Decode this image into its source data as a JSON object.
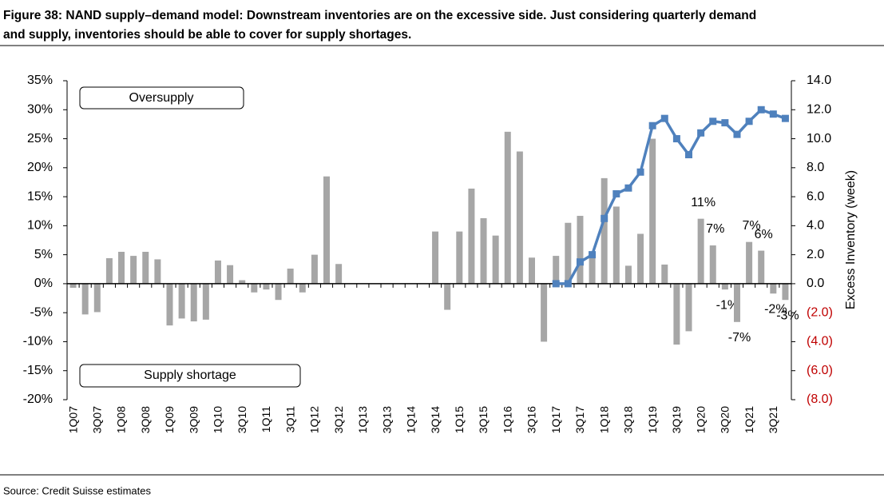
{
  "chart_data": {
    "type": "bar",
    "title": "Figure 38: NAND supply–demand model: Downstream inventories are on the excessive side. Just considering quarterly demand and supply, inventories should be able to cover for supply shortages.",
    "source": "Source: Credit Suisse estimates",
    "annotations": [
      "Oversupply",
      "Supply shortage"
    ],
    "y2label": "Excess Inventory (week)",
    "categories": [
      "1Q07",
      null,
      "3Q07",
      null,
      "1Q08",
      null,
      "3Q08",
      null,
      "1Q09",
      null,
      "3Q09",
      null,
      "1Q10",
      null,
      "3Q10",
      null,
      "1Q11",
      null,
      "3Q11",
      null,
      "1Q12",
      null,
      "3Q12",
      null,
      "1Q13",
      null,
      "3Q13",
      null,
      "1Q14",
      null,
      "3Q14",
      null,
      "1Q15",
      null,
      "3Q15",
      null,
      "1Q16",
      null,
      "3Q16",
      null,
      "1Q17",
      null,
      "3Q17",
      null,
      "1Q18",
      null,
      "3Q18",
      null,
      "1Q19",
      null,
      "3Q19",
      null,
      "1Q20",
      null,
      "3Q20",
      null,
      "1Q21",
      null,
      "3Q21",
      null
    ],
    "series": [
      {
        "type": "bar",
        "color": "#a6a6a6",
        "values": [
          -0.7,
          -5.3,
          -4.9,
          4.4,
          5.5,
          4.8,
          5.5,
          4.2,
          -7.2,
          -6,
          -6.5,
          -6.2,
          4,
          3.2,
          0.6,
          -1.5,
          -1,
          -2.8,
          2.6,
          -1.5,
          5,
          18.5,
          3.4,
          0,
          0,
          0,
          0,
          0,
          0,
          0,
          9,
          -4.5,
          9,
          16.4,
          11.3,
          8.3,
          26.2,
          22.8,
          4.5,
          -10,
          4.8,
          10.5,
          11.7,
          4.9,
          18.2,
          13.3,
          3.1,
          8.6,
          25,
          3.3,
          -10.5,
          -8.2,
          11.2,
          6.6,
          -1,
          -6.6,
          7.2,
          5.7,
          -1.7,
          -2.8
        ],
        "value_labels": [
          null,
          null,
          null,
          null,
          null,
          null,
          null,
          null,
          null,
          null,
          null,
          null,
          null,
          null,
          null,
          null,
          null,
          null,
          null,
          null,
          null,
          null,
          null,
          null,
          null,
          null,
          null,
          null,
          null,
          null,
          null,
          null,
          null,
          null,
          null,
          null,
          null,
          null,
          null,
          null,
          null,
          null,
          null,
          null,
          null,
          null,
          null,
          null,
          null,
          null,
          null,
          null,
          "11%",
          "7%",
          "-1%",
          "-7%",
          "7%",
          "6%",
          "-2%",
          "-3%"
        ]
      },
      {
        "type": "line",
        "axis": "y2",
        "color": "#4f81bd",
        "values": [
          null,
          null,
          null,
          null,
          null,
          null,
          null,
          null,
          null,
          null,
          null,
          null,
          null,
          null,
          null,
          null,
          null,
          null,
          null,
          null,
          null,
          null,
          null,
          null,
          null,
          null,
          null,
          null,
          null,
          null,
          null,
          null,
          null,
          null,
          null,
          null,
          null,
          null,
          null,
          null,
          0,
          0,
          1.5,
          2.0,
          4.5,
          6.2,
          6.6,
          7.7,
          10.9,
          11.4,
          10.0,
          8.9,
          10.4,
          11.2,
          11.1,
          10.3,
          11.2,
          12.0,
          11.7,
          11.4
        ]
      }
    ],
    "ylim": [
      -20,
      35
    ],
    "yticks": [
      {
        "value": -20,
        "label": "-20%"
      },
      {
        "value": -15,
        "label": "-15%"
      },
      {
        "value": -10,
        "label": "-10%"
      },
      {
        "value": -5,
        "label": "-5%"
      },
      {
        "value": 0,
        "label": "0%"
      },
      {
        "value": 5,
        "label": "5%"
      },
      {
        "value": 10,
        "label": "10%"
      },
      {
        "value": 15,
        "label": "15%"
      },
      {
        "value": 20,
        "label": "20%"
      },
      {
        "value": 25,
        "label": "25%"
      },
      {
        "value": 30,
        "label": "30%"
      },
      {
        "value": 35,
        "label": "35%"
      }
    ],
    "y2lim": [
      -8,
      14
    ],
    "y2ticks": [
      {
        "value": -8,
        "label": "(8.0)"
      },
      {
        "value": -6,
        "label": "(6.0)"
      },
      {
        "value": -4,
        "label": "(4.0)"
      },
      {
        "value": -2,
        "label": "(2.0)"
      },
      {
        "value": 0,
        "label": "0.0"
      },
      {
        "value": 2,
        "label": "2.0"
      },
      {
        "value": 4,
        "label": "4.0"
      },
      {
        "value": 6,
        "label": "6.0"
      },
      {
        "value": 8,
        "label": "8.0"
      },
      {
        "value": 10,
        "label": "10.0"
      },
      {
        "value": 12,
        "label": "12.0"
      },
      {
        "value": 14,
        "label": "14.0"
      }
    ],
    "y2_negative_color": "#c00000",
    "grid": false
  }
}
